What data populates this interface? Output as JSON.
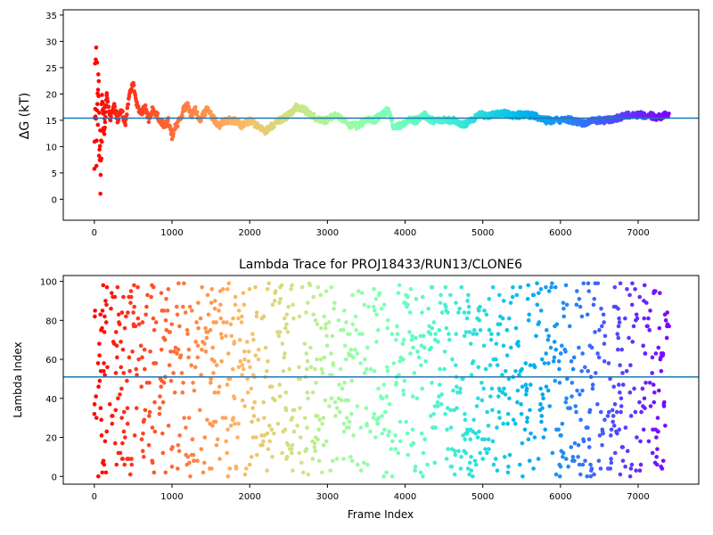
{
  "chart_data": [
    {
      "type": "scatter",
      "title": "",
      "xlabel": "",
      "ylabel": "ΔG (kT)",
      "xlim": [
        -400,
        7780
      ],
      "ylim": [
        -4,
        36
      ],
      "xticks": [
        "0",
        "1000",
        "2000",
        "3000",
        "4000",
        "5000",
        "6000",
        "7000"
      ],
      "yticks": [
        "0",
        "5",
        "10",
        "15",
        "20",
        "25",
        "30",
        "35"
      ],
      "colormap": "rainbow (frame index: red early → violet late)",
      "hline": {
        "y": 15.4,
        "color": "#1f77b4"
      },
      "trace_points": [
        {
          "x": 5,
          "y": 2
        },
        {
          "x": 10,
          "y": 29
        },
        {
          "x": 15,
          "y": 10
        },
        {
          "x": 20,
          "y": 24
        },
        {
          "x": 30,
          "y": 13
        },
        {
          "x": 40,
          "y": 20
        },
        {
          "x": 60,
          "y": 15
        },
        {
          "x": 80,
          "y": 5
        },
        {
          "x": 100,
          "y": 18
        },
        {
          "x": 130,
          "y": 14
        },
        {
          "x": 160,
          "y": 20
        },
        {
          "x": 200,
          "y": 15
        },
        {
          "x": 250,
          "y": 18
        },
        {
          "x": 300,
          "y": 15
        },
        {
          "x": 350,
          "y": 17
        },
        {
          "x": 400,
          "y": 14
        },
        {
          "x": 450,
          "y": 20
        },
        {
          "x": 500,
          "y": 22
        },
        {
          "x": 550,
          "y": 18
        },
        {
          "x": 600,
          "y": 16
        },
        {
          "x": 650,
          "y": 18
        },
        {
          "x": 700,
          "y": 15
        },
        {
          "x": 750,
          "y": 17
        },
        {
          "x": 800,
          "y": 16
        },
        {
          "x": 850,
          "y": 15
        },
        {
          "x": 900,
          "y": 14
        },
        {
          "x": 950,
          "y": 15
        },
        {
          "x": 1000,
          "y": 12
        },
        {
          "x": 1050,
          "y": 14
        },
        {
          "x": 1100,
          "y": 15
        },
        {
          "x": 1150,
          "y": 17
        },
        {
          "x": 1200,
          "y": 18
        },
        {
          "x": 1250,
          "y": 16
        },
        {
          "x": 1300,
          "y": 17
        },
        {
          "x": 1350,
          "y": 15
        },
        {
          "x": 1400,
          "y": 16
        },
        {
          "x": 1450,
          "y": 17
        },
        {
          "x": 1500,
          "y": 16
        },
        {
          "x": 1600,
          "y": 14
        },
        {
          "x": 1700,
          "y": 15
        },
        {
          "x": 1800,
          "y": 15
        },
        {
          "x": 1900,
          "y": 14
        },
        {
          "x": 2000,
          "y": 15
        },
        {
          "x": 2100,
          "y": 14
        },
        {
          "x": 2200,
          "y": 13
        },
        {
          "x": 2300,
          "y": 14
        },
        {
          "x": 2400,
          "y": 15
        },
        {
          "x": 2500,
          "y": 16
        },
        {
          "x": 2600,
          "y": 17.5
        },
        {
          "x": 2700,
          "y": 17
        },
        {
          "x": 2800,
          "y": 16
        },
        {
          "x": 2900,
          "y": 15
        },
        {
          "x": 3000,
          "y": 15
        },
        {
          "x": 3100,
          "y": 16
        },
        {
          "x": 3200,
          "y": 15
        },
        {
          "x": 3300,
          "y": 14
        },
        {
          "x": 3400,
          "y": 14
        },
        {
          "x": 3500,
          "y": 15
        },
        {
          "x": 3600,
          "y": 15
        },
        {
          "x": 3700,
          "y": 16
        },
        {
          "x": 3780,
          "y": 17
        },
        {
          "x": 3850,
          "y": 14
        },
        {
          "x": 3950,
          "y": 14
        },
        {
          "x": 4050,
          "y": 15
        },
        {
          "x": 4150,
          "y": 15
        },
        {
          "x": 4250,
          "y": 16
        },
        {
          "x": 4350,
          "y": 15
        },
        {
          "x": 4450,
          "y": 15
        },
        {
          "x": 4550,
          "y": 15
        },
        {
          "x": 4650,
          "y": 15
        },
        {
          "x": 4750,
          "y": 14
        },
        {
          "x": 4850,
          "y": 15
        },
        {
          "x": 4950,
          "y": 16
        },
        {
          "x": 5050,
          "y": 16
        },
        {
          "x": 5150,
          "y": 16
        },
        {
          "x": 5250,
          "y": 16.5
        },
        {
          "x": 5350,
          "y": 16
        },
        {
          "x": 5450,
          "y": 16
        },
        {
          "x": 5550,
          "y": 16
        },
        {
          "x": 5650,
          "y": 16
        },
        {
          "x": 5750,
          "y": 15
        },
        {
          "x": 5850,
          "y": 15
        },
        {
          "x": 5950,
          "y": 15
        },
        {
          "x": 6050,
          "y": 15
        },
        {
          "x": 6150,
          "y": 15
        },
        {
          "x": 6250,
          "y": 14.5
        },
        {
          "x": 6350,
          "y": 14.5
        },
        {
          "x": 6450,
          "y": 15
        },
        {
          "x": 6550,
          "y": 15
        },
        {
          "x": 6650,
          "y": 15
        },
        {
          "x": 6750,
          "y": 15.5
        },
        {
          "x": 6850,
          "y": 16
        },
        {
          "x": 6950,
          "y": 16
        },
        {
          "x": 7050,
          "y": 16
        },
        {
          "x": 7150,
          "y": 16
        },
        {
          "x": 7250,
          "y": 15.5
        },
        {
          "x": 7350,
          "y": 16
        },
        {
          "x": 7400,
          "y": 15.8
        }
      ]
    },
    {
      "type": "scatter",
      "title": "Lambda Trace for PROJ18433/RUN13/CLONE6",
      "xlabel": "Frame Index",
      "ylabel": "Lambda Index",
      "xlim": [
        -400,
        7780
      ],
      "ylim": [
        -4,
        103
      ],
      "xticks": [
        "0",
        "1000",
        "2000",
        "3000",
        "4000",
        "5000",
        "6000",
        "7000"
      ],
      "yticks": [
        "0",
        "20",
        "40",
        "60",
        "80",
        "100"
      ],
      "colormap": "rainbow (frame index: red early → violet late)",
      "hline": {
        "y": 51,
        "color": "#1f77b4"
      },
      "x_range": [
        0,
        7400
      ],
      "lambda_range": [
        0,
        99
      ],
      "n_points": 7400
    }
  ]
}
